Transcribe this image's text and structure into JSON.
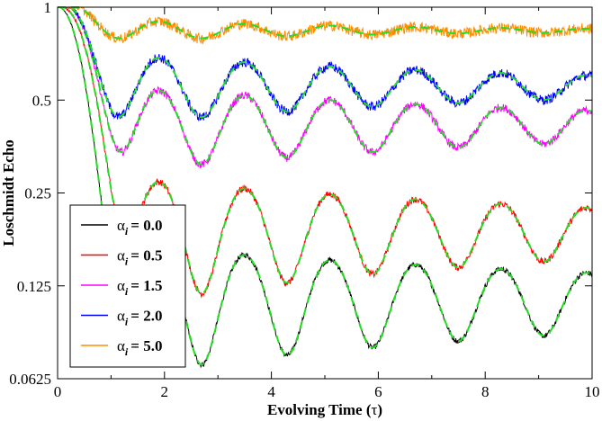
{
  "chart_data": {
    "type": "line",
    "title": "",
    "xlabel_text": "Evolving Time (",
    "xlabel_symbol": "τ",
    "xlabel_close": ")",
    "ylabel": "Loschmidt Echo",
    "xlim": [
      0,
      10
    ],
    "ylim": [
      0.0625,
      1
    ],
    "yscale": "log2",
    "xticks": [
      0,
      2,
      4,
      6,
      8,
      10
    ],
    "xtick_labels": [
      "0",
      "2",
      "4",
      "6",
      "8",
      "10"
    ],
    "yticks": [
      0.0625,
      0.125,
      0.25,
      0.5,
      1
    ],
    "ytick_labels": [
      "0.0625",
      "0.125",
      "0.25",
      "0.5",
      "1"
    ],
    "legend_position": "bottom-left",
    "fit_line": {
      "description": "dashed fit",
      "color": "#22dd22"
    },
    "series": [
      {
        "name": "α_i = 0.0",
        "symbol": "α",
        "sub": "i",
        "value_text": "= 0.0",
        "color": "#000000",
        "asymptote": 0.11,
        "a1": 0.52,
        "a2": 0.38,
        "period": 1.6,
        "tau": 0.6,
        "tau_osc": 12,
        "noise": 0.02
      },
      {
        "name": "α_i = 0.5",
        "symbol": "α",
        "sub": "i",
        "value_text": "= 0.5",
        "color": "#ff0000",
        "asymptote": 0.185,
        "a1": 0.52,
        "a2": 0.3,
        "period": 1.6,
        "tau": 0.75,
        "tau_osc": 10,
        "noise": 0.025
      },
      {
        "name": "α_i = 1.5",
        "symbol": "α",
        "sub": "i",
        "value_text": "= 1.5",
        "color": "#ff00ff",
        "asymptote": 0.41,
        "a1": 0.36,
        "a2": 0.18,
        "period": 1.6,
        "tau": 0.7,
        "tau_osc": 9,
        "noise": 0.03
      },
      {
        "name": "α_i = 2.0",
        "symbol": "α",
        "sub": "i",
        "value_text": "= 2.0",
        "color": "#0000ff",
        "asymptote": 0.55,
        "a1": 0.3,
        "a2": 0.13,
        "period": 1.6,
        "tau": 0.6,
        "tau_osc": 8,
        "noise": 0.035
      },
      {
        "name": "α_i = 5.0",
        "symbol": "α",
        "sub": "i",
        "value_text": "= 5.0",
        "color": "#ff8c00",
        "asymptote": 0.84,
        "a1": 0.1,
        "a2": 0.03,
        "period": 1.6,
        "tau": 0.7,
        "tau_osc": 5,
        "noise": 0.04
      }
    ]
  }
}
